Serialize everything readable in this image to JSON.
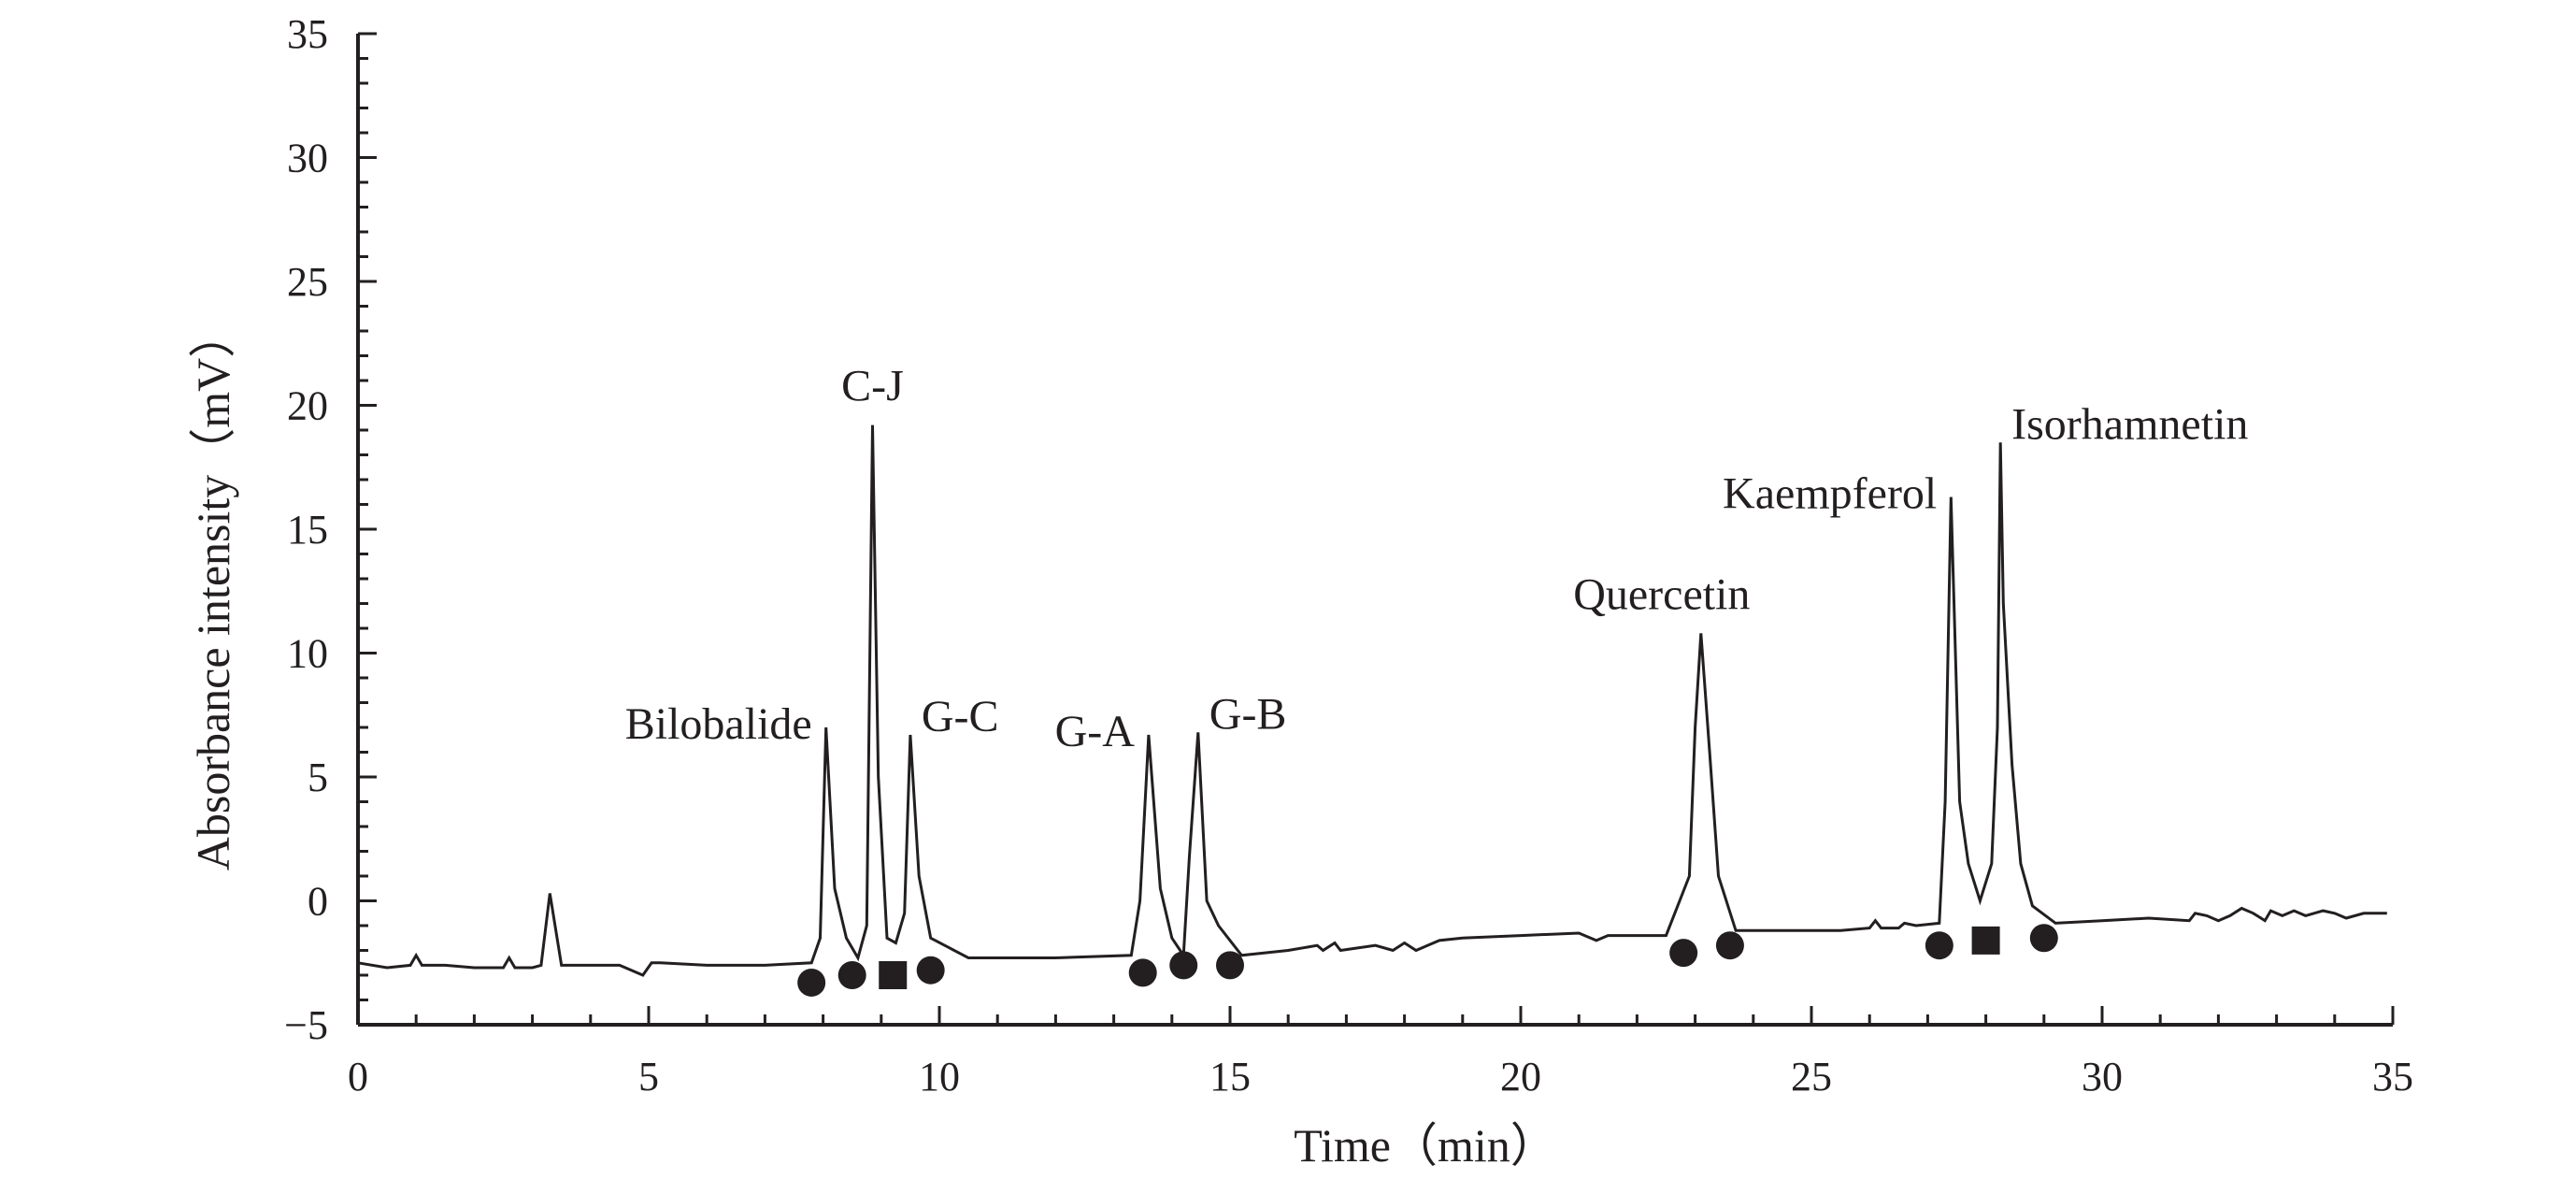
{
  "chart_data": {
    "type": "line",
    "xlabel": "Time（min）",
    "ylabel": "Absorbance intensity（mV）",
    "xlim": [
      0,
      35
    ],
    "ylim": [
      -5,
      35
    ],
    "x_ticks": [
      0,
      5,
      10,
      15,
      20,
      25,
      30,
      35
    ],
    "y_ticks": [
      -5,
      0,
      5,
      10,
      15,
      20,
      25,
      30,
      35
    ],
    "x_tick_labels": [
      "0",
      "5",
      "10",
      "15",
      "20",
      "25",
      "30",
      "35"
    ],
    "y_tick_labels": [
      "−5",
      "0",
      "5",
      "10",
      "15",
      "20",
      "25",
      "30",
      "35"
    ],
    "grid": false,
    "line_color": "#231f20",
    "series": [
      {
        "x": [
          0,
          0.5,
          0.9,
          1.0,
          1.1,
          1.5,
          2.0,
          2.5,
          2.6,
          2.7,
          3.0,
          3.15,
          3.3,
          3.5,
          4.0,
          4.5,
          4.9,
          5.05,
          5.2,
          6.0,
          7.0,
          7.8,
          7.95,
          8.05,
          8.2,
          8.4,
          8.6,
          8.75,
          8.85,
          8.95,
          9.1,
          9.25,
          9.4,
          9.5,
          9.65,
          9.85,
          10.5,
          12.0,
          13.3,
          13.45,
          13.6,
          13.8,
          14.0,
          14.2,
          14.3,
          14.45,
          14.6,
          14.8,
          15.2,
          16.0,
          16.5,
          16.6,
          16.8,
          16.9,
          17.5,
          17.8,
          18.0,
          18.2,
          18.6,
          19.0,
          20.0,
          21.0,
          21.3,
          21.5,
          22.5,
          22.9,
          23.0,
          23.1,
          23.25,
          23.4,
          23.7,
          24.5,
          25.5,
          26.0,
          26.1,
          26.2,
          26.5,
          26.6,
          26.8,
          27.2,
          27.3,
          27.4,
          27.55,
          27.7,
          27.9,
          28.1,
          28.2,
          28.25,
          28.3,
          28.45,
          28.6,
          28.8,
          29.2,
          30.0,
          30.8,
          31.5,
          31.6,
          31.8,
          32.0,
          32.2,
          32.4,
          32.6,
          32.8,
          32.9,
          33.1,
          33.3,
          33.5,
          33.8,
          34.0,
          34.2,
          34.5,
          34.9
        ],
        "y": [
          -2.5,
          -2.7,
          -2.6,
          -2.2,
          -2.6,
          -2.6,
          -2.7,
          -2.7,
          -2.3,
          -2.7,
          -2.7,
          -2.6,
          0.3,
          -2.6,
          -2.6,
          -2.6,
          -3.0,
          -2.5,
          -2.5,
          -2.6,
          -2.6,
          -2.5,
          -1.5,
          7.0,
          0.5,
          -1.5,
          -2.3,
          -1.0,
          19.2,
          5.0,
          -1.5,
          -1.7,
          -0.5,
          6.7,
          1.0,
          -1.5,
          -2.3,
          -2.3,
          -2.2,
          0.0,
          6.7,
          0.5,
          -1.5,
          -2.2,
          1.8,
          6.8,
          0.0,
          -1.0,
          -2.2,
          -2.0,
          -1.8,
          -2.0,
          -1.7,
          -2.0,
          -1.8,
          -2.0,
          -1.7,
          -2.0,
          -1.6,
          -1.5,
          -1.4,
          -1.3,
          -1.6,
          -1.4,
          -1.4,
          1.0,
          7.0,
          10.8,
          6.0,
          1.0,
          -1.2,
          -1.2,
          -1.2,
          -1.1,
          -0.8,
          -1.1,
          -1.1,
          -0.9,
          -1.0,
          -0.9,
          4.0,
          16.3,
          4.0,
          1.5,
          0.0,
          1.5,
          7.0,
          18.5,
          12.0,
          5.5,
          1.5,
          -0.2,
          -0.9,
          -0.8,
          -0.7,
          -0.8,
          -0.5,
          -0.6,
          -0.8,
          -0.6,
          -0.3,
          -0.5,
          -0.8,
          -0.4,
          -0.6,
          -0.4,
          -0.6,
          -0.4,
          -0.5,
          -0.7,
          -0.5,
          -0.5
        ]
      }
    ],
    "peak_labels": [
      {
        "text": "Bilobalide",
        "x": 8.05,
        "y": 7.0,
        "side": "left"
      },
      {
        "text": "C-J",
        "x": 8.85,
        "y": 19.2,
        "side": "top"
      },
      {
        "text": "G-C",
        "x": 9.5,
        "y": 6.7,
        "side": "right"
      },
      {
        "text": "G-A",
        "x": 13.6,
        "y": 6.7,
        "side": "left"
      },
      {
        "text": "G-B",
        "x": 14.45,
        "y": 6.8,
        "side": "right"
      },
      {
        "text": "Quercetin",
        "x": 23.1,
        "y": 10.8,
        "side": "top-left"
      },
      {
        "text": "Kaempferol",
        "x": 27.4,
        "y": 16.3,
        "side": "left"
      },
      {
        "text": "Isorhamnetin",
        "x": 28.25,
        "y": 18.5,
        "side": "right"
      }
    ],
    "markers": [
      {
        "shape": "circle",
        "x": 7.8,
        "y": -3.3
      },
      {
        "shape": "circle",
        "x": 8.5,
        "y": -3.0
      },
      {
        "shape": "square",
        "x": 9.2,
        "y": -3.0
      },
      {
        "shape": "circle",
        "x": 9.85,
        "y": -2.8
      },
      {
        "shape": "circle",
        "x": 13.5,
        "y": -2.9
      },
      {
        "shape": "circle",
        "x": 14.2,
        "y": -2.6
      },
      {
        "shape": "circle",
        "x": 15.0,
        "y": -2.6
      },
      {
        "shape": "circle",
        "x": 22.8,
        "y": -2.1
      },
      {
        "shape": "circle",
        "x": 23.6,
        "y": -1.8
      },
      {
        "shape": "circle",
        "x": 27.2,
        "y": -1.8
      },
      {
        "shape": "square",
        "x": 28.0,
        "y": -1.6
      },
      {
        "shape": "circle",
        "x": 29.0,
        "y": -1.5
      }
    ]
  }
}
